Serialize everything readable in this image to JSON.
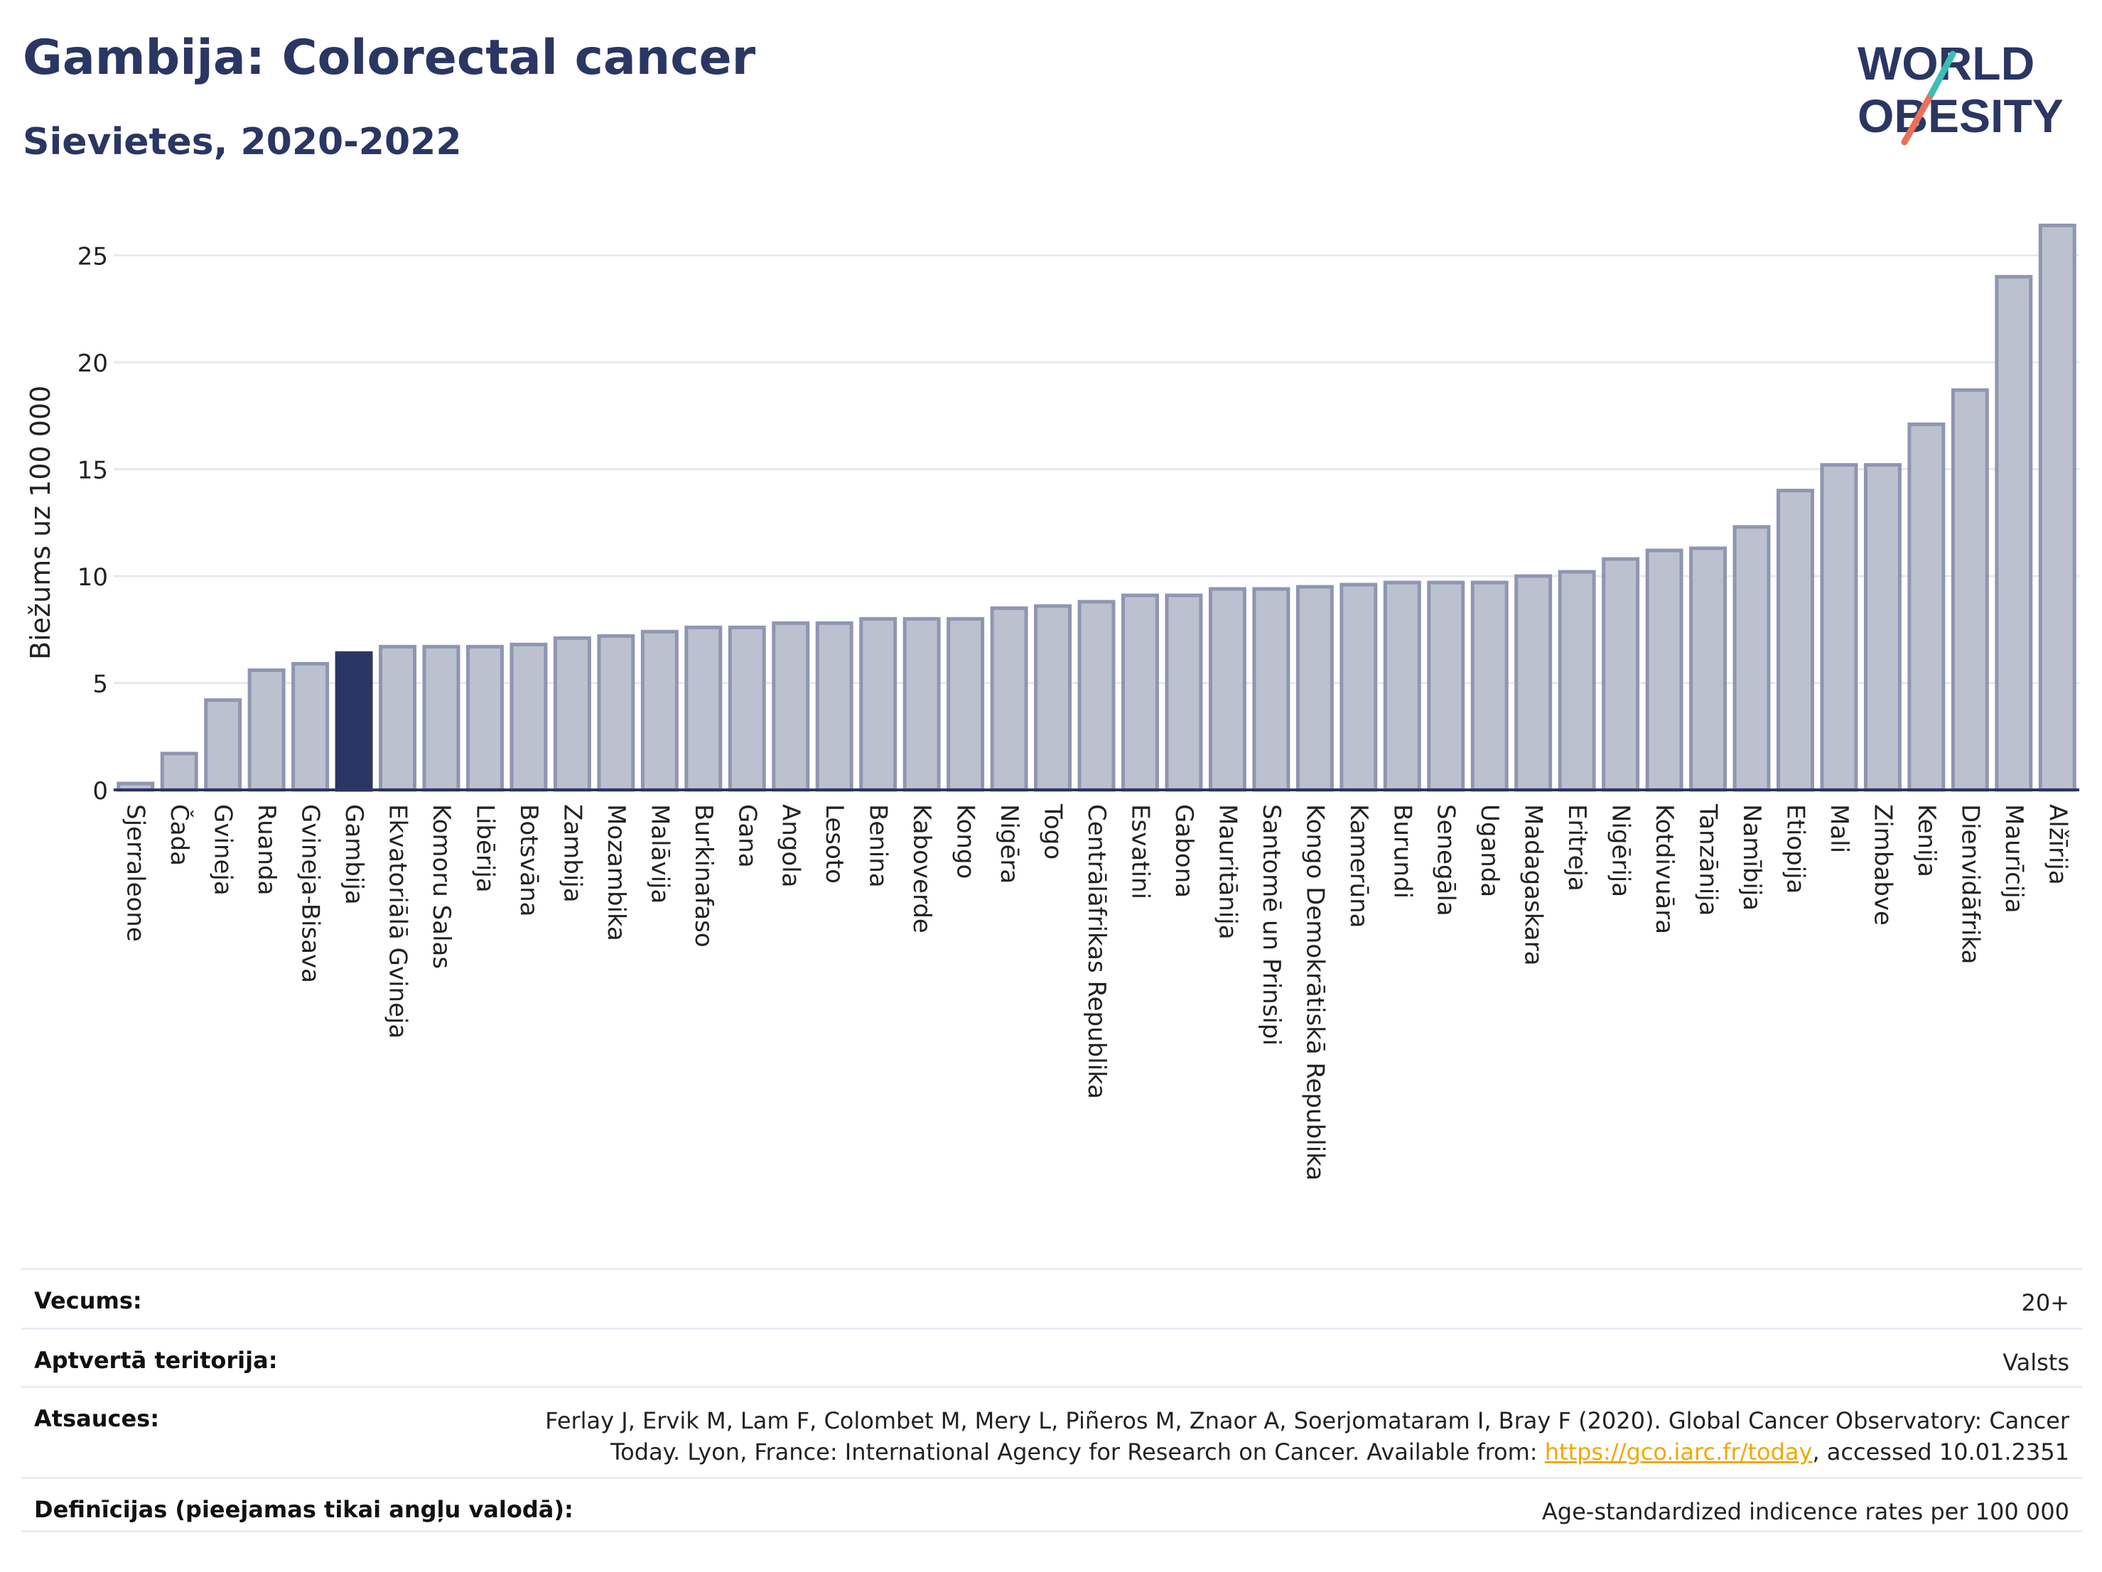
{
  "header": {
    "title": "Gambija: Colorectal cancer",
    "subtitle": "Sievietes, 2020-2022"
  },
  "logo": {
    "line1": "WORLD",
    "line2": "OBESITY",
    "icon": "slash-icon",
    "color_main": "#2a3663",
    "color_accent1": "#3bbfb4",
    "color_accent2": "#ee6f57"
  },
  "colors": {
    "bar": "#bcc1d0",
    "bar_stroke": "#8f96b0",
    "highlight": "#2a3663",
    "grid": "#e6e9f0",
    "axis": "#2a3663"
  },
  "chart_data": {
    "type": "bar",
    "ylabel": "Biežums uz 100 000",
    "ylim": [
      0,
      27
    ],
    "yticks": [
      0,
      5,
      10,
      15,
      20,
      25
    ],
    "highlight": "Gambija",
    "grid": true,
    "categories": [
      "Sjerraleone",
      "Čada",
      "Gvineja",
      "Ruanda",
      "Gvineja-Bisava",
      "Gambija",
      "Ekvatoriālā Gvineja",
      "Komoru Salas",
      "Libērija",
      "Botsvāna",
      "Zambija",
      "Mozambika",
      "Malāvija",
      "Burkinafaso",
      "Gana",
      "Angola",
      "Lesoto",
      "Benina",
      "Kaboverde",
      "Kongo",
      "Nigēra",
      "Togo",
      "Centrālāfrikas Republika",
      "Esvatini",
      "Gabona",
      "Mauritānija",
      "Santomē un Prinsipi",
      "Kongo Demokrātiskā Republika",
      "Kamerūna",
      "Burundi",
      "Senegāla",
      "Uganda",
      "Madagaskara",
      "Eritreja",
      "Nigērija",
      "Kotdivuāra",
      "Tanzānija",
      "Namībija",
      "Etiopija",
      "Mali",
      "Zimbabve",
      "Kenija",
      "Dienvidāfrika",
      "Maurīcija",
      "Alžīrija"
    ],
    "values": [
      0.3,
      1.7,
      4.2,
      5.6,
      5.9,
      6.4,
      6.7,
      6.7,
      6.7,
      6.8,
      7.1,
      7.2,
      7.4,
      7.6,
      7.6,
      7.8,
      7.8,
      8.0,
      8.0,
      8.0,
      8.5,
      8.6,
      8.8,
      9.1,
      9.1,
      9.4,
      9.4,
      9.5,
      9.6,
      9.7,
      9.7,
      9.7,
      10.0,
      10.2,
      10.8,
      11.2,
      11.3,
      12.3,
      14.0,
      15.2,
      15.2,
      17.1,
      18.7,
      24.0,
      26.4
    ]
  },
  "info": {
    "age_label": "Vecums:",
    "age_value": "20+",
    "coverage_label": "Aptvertā teritorija:",
    "coverage_value": "Valsts",
    "refs_label": "Atsauces:",
    "refs_line1": "Ferlay J, Ervik M, Lam F, Colombet M, Mery L, Piñeros M, Znaor A, Soerjomataram I, Bray F (2020). Global Cancer Observatory: Cancer",
    "refs_line2a": "Today. Lyon, France: International Agency for Research on Cancer. Available from: ",
    "refs_link": "https://gco.iarc.fr/today",
    "refs_line2b": ", accessed 10.01.2351",
    "defs_label": "Definīcijas (pieejamas tikai angļu valodā):",
    "defs_value": "Age-standardized indicence rates per 100 000"
  }
}
